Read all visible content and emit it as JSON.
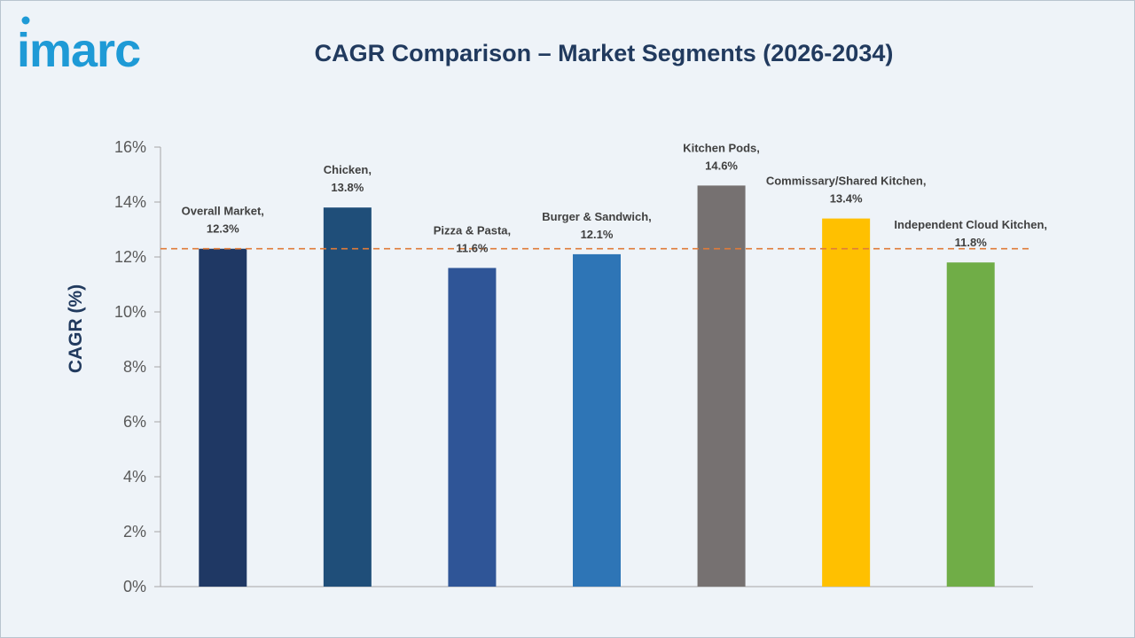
{
  "logo": {
    "text": "imarc",
    "color": "#1e9ad6"
  },
  "chart_data": {
    "type": "bar",
    "title": "CAGR Comparison – Market Segments (2026-2034)",
    "ylabel": "CAGR (%)",
    "xlabel": "",
    "ylim": [
      0,
      16
    ],
    "yticks": [
      0,
      2,
      4,
      6,
      8,
      10,
      12,
      14,
      16
    ],
    "ytick_labels": [
      "0%",
      "2%",
      "4%",
      "6%",
      "8%",
      "10%",
      "12%",
      "14%",
      "16%"
    ],
    "categories": [
      "Overall Market",
      "Chicken",
      "Pizza & Pasta",
      "Burger & Sandwich",
      "Kitchen Pods",
      "Commissary/Shared Kitchen",
      "Independent Cloud Kitchen"
    ],
    "values": [
      12.3,
      13.8,
      11.6,
      12.1,
      14.6,
      13.4,
      11.8
    ],
    "label_names": [
      "Overall Market,",
      "Chicken,",
      "Pizza & Pasta,",
      "Burger & Sandwich,",
      "Kitchen Pods,",
      "Commissary/Shared Kitchen,",
      "Independent Cloud Kitchen,"
    ],
    "label_values": [
      "12.3%",
      "13.8%",
      "11.6%",
      "12.1%",
      "14.6%",
      "13.4%",
      "11.8%"
    ],
    "colors": [
      "#1f3864",
      "#1f4e79",
      "#2f5597",
      "#2e75b6",
      "#767171",
      "#ffc000",
      "#70ad47"
    ],
    "reference_line": {
      "value": 12.3,
      "color": "#e07b39",
      "style": "dashed"
    },
    "grid": false,
    "legend": "none"
  }
}
